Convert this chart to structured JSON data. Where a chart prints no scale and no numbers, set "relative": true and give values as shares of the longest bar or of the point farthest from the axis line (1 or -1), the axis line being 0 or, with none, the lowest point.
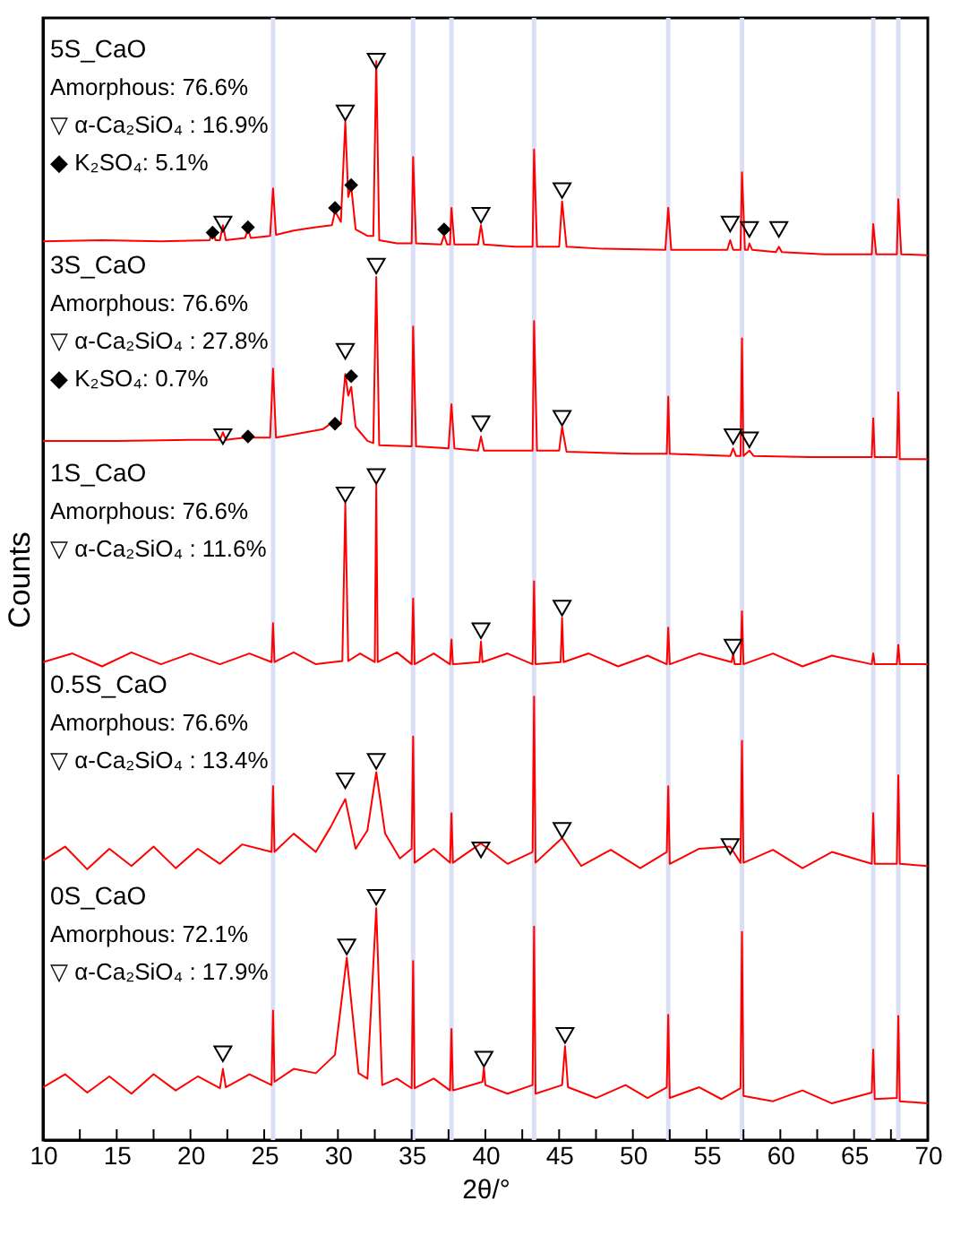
{
  "chart_data": {
    "type": "line",
    "relative": true,
    "xlabel": "2θ/°",
    "ylabel": "Counts",
    "xlim": [
      10,
      70
    ],
    "xticks": [
      10,
      {
        "value": 12.5,
        "label": null
      },
      15,
      {
        "value": 17.5,
        "label": null
      },
      20,
      {
        "value": 22.5,
        "label": null
      },
      25,
      {
        "value": 27.5,
        "label": null
      },
      30,
      {
        "value": 32.5,
        "label": null
      },
      35,
      {
        "value": 37.5,
        "label": null
      },
      40,
      {
        "value": 42.5,
        "label": null
      },
      45,
      {
        "value": 47.5,
        "label": null
      },
      50,
      {
        "value": 52.5,
        "label": null
      },
      55,
      {
        "value": 57.5,
        "label": null
      },
      60,
      {
        "value": 62.5,
        "label": null
      },
      65,
      {
        "value": 67.5,
        "label": null
      },
      70
    ],
    "tick_labels": "x",
    "grid": false,
    "marker": "none",
    "line_style": "solid",
    "series": [
      {
        "color": "#ff0000",
        "x": [
          10,
          14,
          18,
          21.3,
          21.5,
          21.7,
          22.0,
          22.2,
          22.4,
          23.7,
          23.9,
          24.1,
          25.4,
          25.6,
          25.8,
          27,
          28.5,
          29.6,
          29.8,
          30.2,
          30.5,
          30.7,
          30.9,
          31.2,
          32.0,
          32.4,
          32.6,
          32.8,
          34,
          35.0,
          35.1,
          35.3,
          37.0,
          37.2,
          37.4,
          37.6,
          37.7,
          37.9,
          39.5,
          39.7,
          39.9,
          42,
          43.2,
          43.3,
          43.5,
          45.0,
          45.2,
          45.5,
          48,
          52.2,
          52.4,
          52.6,
          56.4,
          56.6,
          56.8,
          57.3,
          57.4,
          57.6,
          57.8,
          57.9,
          58.1,
          59.7,
          59.9,
          60.1,
          63,
          66.2,
          66.3,
          66.5,
          67.9,
          68.0,
          68.2,
          70
        ],
        "values": [
          0.833,
          0.834,
          0.833,
          0.834,
          0.844,
          0.834,
          0.834,
          0.848,
          0.834,
          0.836,
          0.844,
          0.836,
          0.838,
          0.882,
          0.839,
          0.843,
          0.846,
          0.848,
          0.861,
          0.851,
          0.944,
          0.874,
          0.884,
          0.844,
          0.838,
          0.838,
          1.0,
          0.834,
          0.831,
          0.831,
          0.911,
          0.831,
          0.83,
          0.839,
          0.83,
          0.83,
          0.864,
          0.83,
          0.83,
          0.848,
          0.83,
          0.828,
          0.828,
          0.918,
          0.828,
          0.828,
          0.87,
          0.828,
          0.826,
          0.825,
          0.864,
          0.825,
          0.825,
          0.834,
          0.825,
          0.825,
          0.897,
          0.825,
          0.825,
          0.831,
          0.825,
          0.823,
          0.828,
          0.823,
          0.821,
          0.821,
          0.849,
          0.821,
          0.821,
          0.872,
          0.821,
          0.82
        ]
      },
      {
        "color": "#ff0000",
        "x": [
          10,
          15,
          20,
          22.0,
          22.2,
          22.4,
          23.7,
          23.9,
          24.1,
          25.4,
          25.6,
          25.8,
          27,
          29.0,
          29.8,
          30.2,
          30.5,
          30.7,
          30.9,
          31.2,
          32.0,
          32.4,
          32.6,
          32.8,
          35.0,
          35.1,
          35.3,
          37.5,
          37.7,
          37.9,
          39.5,
          39.7,
          39.9,
          43.2,
          43.3,
          43.5,
          45.0,
          45.2,
          45.5,
          50,
          52.3,
          52.4,
          52.5,
          56.6,
          56.8,
          57.0,
          57.3,
          57.4,
          57.5,
          57.9,
          58.2,
          62,
          66.2,
          66.3,
          66.4,
          67.9,
          68.0,
          68.1,
          70
        ],
        "values": [
          0.648,
          0.648,
          0.649,
          0.649,
          0.656,
          0.649,
          0.651,
          0.654,
          0.651,
          0.651,
          0.715,
          0.651,
          0.654,
          0.659,
          0.667,
          0.664,
          0.71,
          0.69,
          0.698,
          0.661,
          0.648,
          0.646,
          0.8,
          0.644,
          0.643,
          0.754,
          0.643,
          0.641,
          0.682,
          0.641,
          0.639,
          0.652,
          0.639,
          0.639,
          0.759,
          0.639,
          0.639,
          0.661,
          0.638,
          0.636,
          0.636,
          0.689,
          0.636,
          0.634,
          0.641,
          0.634,
          0.634,
          0.743,
          0.634,
          0.639,
          0.634,
          0.633,
          0.633,
          0.669,
          0.633,
          0.633,
          0.693,
          0.631,
          0.631
        ]
      },
      {
        "color": "#ff0000",
        "x": [
          10,
          12,
          14,
          16,
          18,
          20,
          22,
          24,
          25.5,
          25.6,
          25.7,
          27,
          28.5,
          30.3,
          30.5,
          30.7,
          31.5,
          32.5,
          32.6,
          32.7,
          34,
          35.0,
          35.1,
          35.2,
          36.5,
          37.6,
          37.7,
          37.8,
          39.6,
          39.7,
          39.8,
          41.5,
          43.2,
          43.3,
          43.4,
          45.1,
          45.2,
          45.3,
          47,
          49,
          51,
          52.3,
          52.4,
          52.5,
          54.5,
          56.7,
          56.8,
          56.9,
          57.3,
          57.4,
          57.5,
          59.5,
          61.5,
          63.5,
          66.2,
          66.3,
          66.4,
          67.9,
          68.0,
          68.1,
          70
        ],
        "values": [
          0.443,
          0.451,
          0.439,
          0.452,
          0.441,
          0.451,
          0.441,
          0.451,
          0.443,
          0.479,
          0.443,
          0.452,
          0.441,
          0.444,
          0.59,
          0.444,
          0.451,
          0.443,
          0.607,
          0.443,
          0.452,
          0.441,
          0.502,
          0.441,
          0.451,
          0.441,
          0.464,
          0.441,
          0.443,
          0.462,
          0.443,
          0.451,
          0.441,
          0.518,
          0.441,
          0.443,
          0.484,
          0.443,
          0.451,
          0.439,
          0.449,
          0.441,
          0.475,
          0.441,
          0.451,
          0.443,
          0.451,
          0.441,
          0.441,
          0.49,
          0.441,
          0.451,
          0.439,
          0.449,
          0.441,
          0.451,
          0.441,
          0.441,
          0.459,
          0.441,
          0.441
        ]
      },
      {
        "color": "#ff0000",
        "x": [
          10,
          11.5,
          13,
          14.5,
          16,
          17.5,
          19,
          20.5,
          22,
          23.5,
          25.5,
          25.6,
          25.7,
          27,
          28.5,
          29.5,
          30.5,
          31.2,
          32.0,
          32.6,
          33.2,
          34.2,
          35.0,
          35.1,
          35.2,
          36.5,
          37.6,
          37.7,
          37.8,
          39.7,
          41.5,
          43.2,
          43.3,
          43.4,
          45.2,
          46.5,
          48.5,
          50.5,
          52.3,
          52.4,
          52.5,
          54.5,
          56.6,
          57.3,
          57.4,
          57.5,
          59.5,
          61.5,
          63.5,
          66.2,
          66.3,
          66.4,
          67.9,
          68.0,
          68.1,
          70
        ],
        "values": [
          0.259,
          0.272,
          0.251,
          0.27,
          0.254,
          0.272,
          0.252,
          0.27,
          0.256,
          0.274,
          0.267,
          0.328,
          0.267,
          0.284,
          0.267,
          0.29,
          0.316,
          0.27,
          0.287,
          0.341,
          0.284,
          0.261,
          0.27,
          0.374,
          0.257,
          0.27,
          0.257,
          0.303,
          0.257,
          0.275,
          0.256,
          0.267,
          0.411,
          0.257,
          0.28,
          0.254,
          0.269,
          0.252,
          0.267,
          0.328,
          0.256,
          0.27,
          0.272,
          0.257,
          0.37,
          0.257,
          0.269,
          0.252,
          0.267,
          0.256,
          0.303,
          0.256,
          0.256,
          0.338,
          0.256,
          0.254
        ]
      },
      {
        "color": "#ff0000",
        "x": [
          10,
          11.5,
          13,
          14.5,
          16,
          17.5,
          19,
          20.5,
          22.0,
          22.2,
          22.4,
          24,
          25.5,
          25.6,
          25.7,
          27,
          28.5,
          29.8,
          30.6,
          31.4,
          32.0,
          32.6,
          33.0,
          34,
          35.0,
          35.1,
          35.2,
          36.5,
          37.6,
          37.7,
          37.8,
          39.8,
          39.9,
          40.0,
          41.5,
          43.2,
          43.3,
          43.4,
          45.2,
          45.4,
          45.6,
          47.5,
          49.5,
          51,
          52.3,
          52.4,
          52.5,
          54.5,
          56,
          57.3,
          57.4,
          57.5,
          59.5,
          61.5,
          63.5,
          66.2,
          66.3,
          66.4,
          67.9,
          68.0,
          68.1,
          70
        ],
        "values": [
          0.049,
          0.061,
          0.044,
          0.059,
          0.043,
          0.061,
          0.046,
          0.059,
          0.048,
          0.066,
          0.049,
          0.061,
          0.051,
          0.12,
          0.054,
          0.066,
          0.062,
          0.079,
          0.169,
          0.062,
          0.057,
          0.215,
          0.051,
          0.057,
          0.048,
          0.166,
          0.048,
          0.057,
          0.046,
          0.103,
          0.046,
          0.054,
          0.067,
          0.051,
          0.043,
          0.051,
          0.198,
          0.043,
          0.051,
          0.087,
          0.049,
          0.039,
          0.051,
          0.039,
          0.049,
          0.116,
          0.039,
          0.049,
          0.038,
          0.048,
          0.193,
          0.041,
          0.036,
          0.046,
          0.034,
          0.044,
          0.084,
          0.038,
          0.039,
          0.115,
          0.036,
          0.034
        ]
      },
      {
        "type": "scatter",
        "marker": "triangle",
        "color": "#000000",
        "x": [
          22.2,
          30.5,
          32.6,
          39.7,
          45.2,
          56.6,
          57.9,
          59.9,
          22.2,
          30.5,
          32.6,
          39.7,
          45.2,
          56.8,
          57.9,
          30.5,
          32.6,
          39.7,
          45.2,
          56.8,
          30.5,
          32.6,
          39.7,
          45.2,
          56.6,
          22.2,
          30.6,
          32.6,
          39.9,
          45.4
        ],
        "values": [
          0.849,
          0.952,
          1.0,
          0.857,
          0.88,
          0.849,
          0.844,
          0.844,
          0.652,
          0.731,
          0.81,
          0.664,
          0.669,
          0.652,
          0.649,
          0.598,
          0.615,
          0.472,
          0.493,
          0.457,
          0.333,
          0.351,
          0.269,
          0.287,
          0.272,
          0.08,
          0.179,
          0.225,
          0.075,
          0.097
        ]
      },
      {
        "type": "scatter",
        "marker": "diamond",
        "color": "#000000",
        "x": [
          21.5,
          23.9,
          29.8,
          30.9,
          37.2,
          23.9,
          29.8,
          30.9
        ],
        "values": [
          0.841,
          0.846,
          0.864,
          0.885,
          0.844,
          0.652,
          0.664,
          0.708
        ]
      }
    ],
    "bands": [
      {
        "axis": "x",
        "from": 25.45,
        "to": 25.75,
        "color": "#dadff6"
      },
      {
        "axis": "x",
        "from": 34.95,
        "to": 35.25,
        "color": "#dadff6"
      },
      {
        "axis": "x",
        "from": 37.55,
        "to": 37.85,
        "color": "#dadff6"
      },
      {
        "axis": "x",
        "from": 43.15,
        "to": 43.45,
        "color": "#dadff6"
      },
      {
        "axis": "x",
        "from": 52.25,
        "to": 52.55,
        "color": "#dadff6"
      },
      {
        "axis": "x",
        "from": 57.25,
        "to": 57.55,
        "color": "#dadff6"
      },
      {
        "axis": "x",
        "from": 66.15,
        "to": 66.45,
        "color": "#dadff6"
      },
      {
        "axis": "x",
        "from": 67.85,
        "to": 68.15,
        "color": "#dadff6"
      }
    ],
    "annotations": [
      "5S_CaO",
      "Amorphous: 76.6%",
      "▽ α-Ca₂SiO₄ : 16.9%",
      "◆ K₂SO₄: 5.1%",
      "3S_CaO",
      "Amorphous: 76.6%",
      "▽ α-Ca₂SiO₄ : 27.8%",
      "◆ K₂SO₄: 0.7%",
      "1S_CaO",
      "Amorphous: 76.6%",
      "▽ α-Ca₂SiO₄ : 11.6%",
      "0.5S_CaO",
      "Amorphous: 76.6%",
      "▽ α-Ca₂SiO₄ : 13.4%",
      "0S_CaO",
      "Amorphous: 72.1%",
      "▽ α-Ca₂SiO₄ : 17.9%"
    ]
  }
}
